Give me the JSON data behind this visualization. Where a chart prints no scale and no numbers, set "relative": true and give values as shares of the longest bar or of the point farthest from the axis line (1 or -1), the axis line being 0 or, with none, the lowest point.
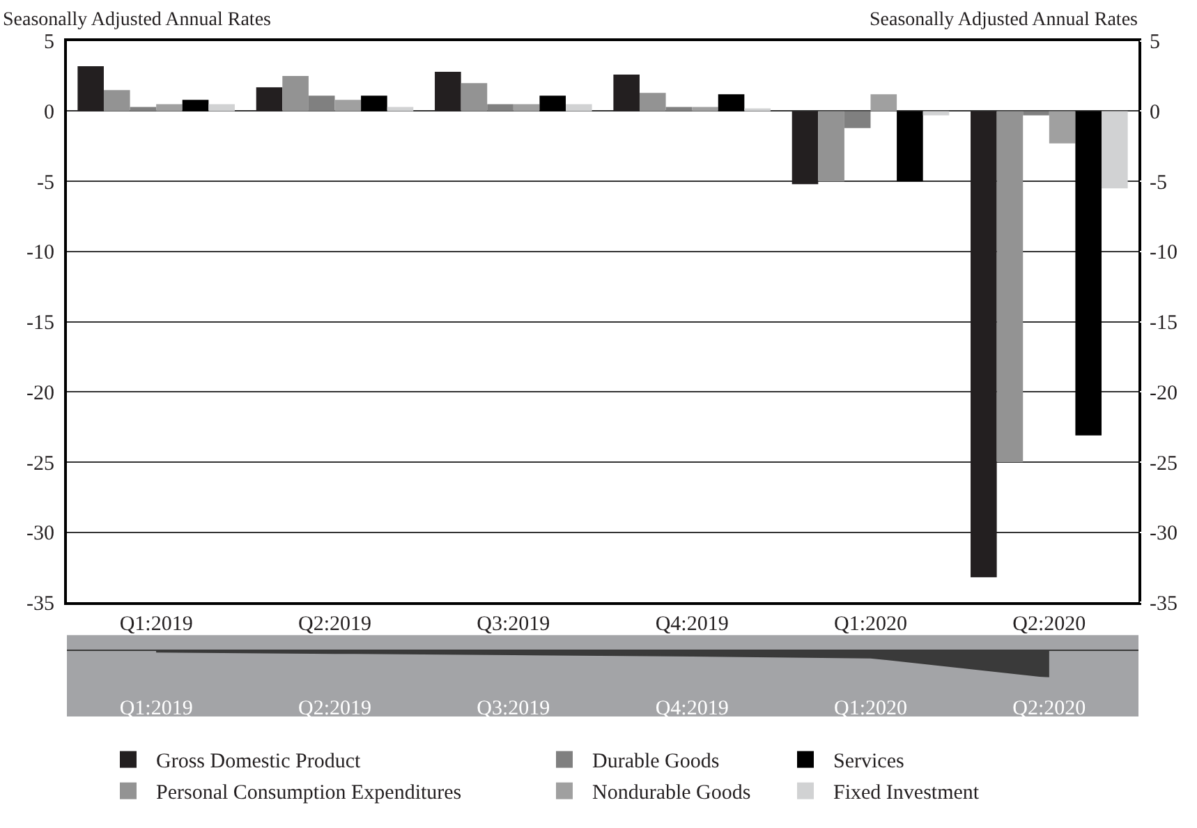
{
  "chart_data": [
    {
      "type": "bar",
      "ylabel": "Seasonally Adjusted Annual Rates",
      "y2label": "Seasonally Adjusted Annual Rates",
      "categories": [
        "Q1:2019",
        "Q2:2019",
        "Q3:2019",
        "Q4:2019",
        "Q1:2020",
        "Q2:2020"
      ],
      "series": [
        {
          "name": "Gross Domestic Product",
          "color": "#231f20",
          "values": [
            3.2,
            1.7,
            2.8,
            2.6,
            -5.2,
            -33.2
          ]
        },
        {
          "name": "Personal Consumption Expenditures",
          "color": "#939393",
          "values": [
            1.5,
            2.5,
            2.0,
            1.3,
            -5.0,
            -25.0
          ]
        },
        {
          "name": "Durable Goods",
          "color": "#808080",
          "values": [
            0.3,
            1.1,
            0.5,
            0.3,
            -1.2,
            -0.3
          ]
        },
        {
          "name": "Nondurable Goods",
          "color": "#a0a0a0",
          "values": [
            0.5,
            0.8,
            0.5,
            0.3,
            1.2,
            -2.3
          ]
        },
        {
          "name": "Services",
          "color": "#000000",
          "values": [
            0.8,
            1.1,
            1.1,
            1.2,
            -5.0,
            -23.1
          ]
        },
        {
          "name": "Fixed Investment",
          "color": "#d1d2d3",
          "values": [
            0.5,
            0.3,
            0.5,
            0.2,
            -0.3,
            -5.5
          ]
        }
      ],
      "ylim": [
        -35,
        5
      ],
      "yticks": [
        -35,
        -30,
        -25,
        -20,
        -15,
        -10,
        -5,
        0,
        5
      ],
      "y2lim": [
        -35,
        5
      ],
      "y2ticks": [
        -35,
        -30,
        -25,
        -20,
        -15,
        -10,
        -5,
        0,
        5
      ],
      "grid": "y",
      "legend": "bottom"
    },
    {
      "type": "area",
      "relative": true,
      "color": "#3a3a3a",
      "categories": [
        "Q1:2019",
        "Q2:2019",
        "Q3:2019",
        "Q4:2019",
        "Q1:2020",
        "Q2:2020"
      ],
      "values": [
        -0.05,
        -0.1,
        -0.15,
        -0.2,
        -0.27,
        -1
      ]
    }
  ]
}
